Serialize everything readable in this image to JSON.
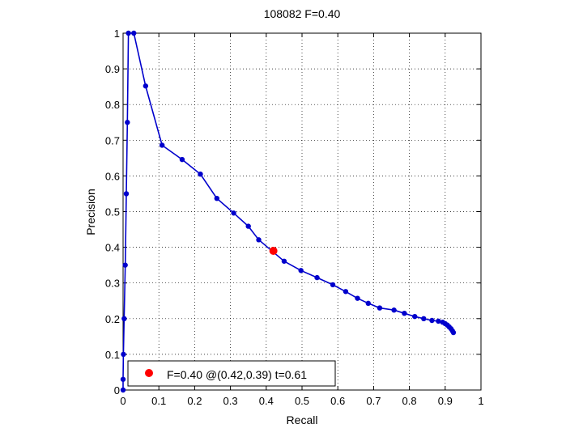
{
  "chart_data": {
    "type": "line",
    "title": "108082 F=0.40",
    "xlabel": "Recall",
    "ylabel": "Precision",
    "xlim": [
      0,
      1
    ],
    "ylim": [
      0,
      1
    ],
    "xticks": [
      "0",
      "0.1",
      "0.2",
      "0.3",
      "0.4",
      "0.5",
      "0.6",
      "0.7",
      "0.8",
      "0.9",
      "1"
    ],
    "yticks": [
      "0",
      "0.1",
      "0.2",
      "0.3",
      "0.4",
      "0.5",
      "0.6",
      "0.7",
      "0.8",
      "0.9",
      "1"
    ],
    "grid": true,
    "legend_position": "bottom-left",
    "series": [
      {
        "color": "#0000cc",
        "x": [
          0.0,
          0.0,
          0.001,
          0.003,
          0.006,
          0.009,
          0.012,
          0.015,
          0.03,
          0.063,
          0.109,
          0.165,
          0.216,
          0.262,
          0.309,
          0.35,
          0.379,
          0.45,
          0.497,
          0.542,
          0.586,
          0.622,
          0.655,
          0.685,
          0.717,
          0.757,
          0.786,
          0.815,
          0.84,
          0.863,
          0.881,
          0.893,
          0.9,
          0.906,
          0.911,
          0.916,
          0.92,
          0.923
        ],
        "y": [
          0.0,
          0.03,
          0.1,
          0.2,
          0.35,
          0.55,
          0.75,
          1.0,
          1.0,
          0.852,
          0.686,
          0.646,
          0.605,
          0.537,
          0.496,
          0.459,
          0.421,
          0.361,
          0.335,
          0.315,
          0.295,
          0.276,
          0.257,
          0.243,
          0.23,
          0.224,
          0.215,
          0.206,
          0.2,
          0.195,
          0.193,
          0.19,
          0.186,
          0.182,
          0.177,
          0.172,
          0.166,
          0.161
        ]
      }
    ],
    "best_point": {
      "x": 0.42,
      "y": 0.39,
      "color": "#ff0000"
    },
    "legend": {
      "text": "F=0.40 @(0.42,0.39) t=0.61",
      "marker_color": "#ff0000"
    }
  }
}
